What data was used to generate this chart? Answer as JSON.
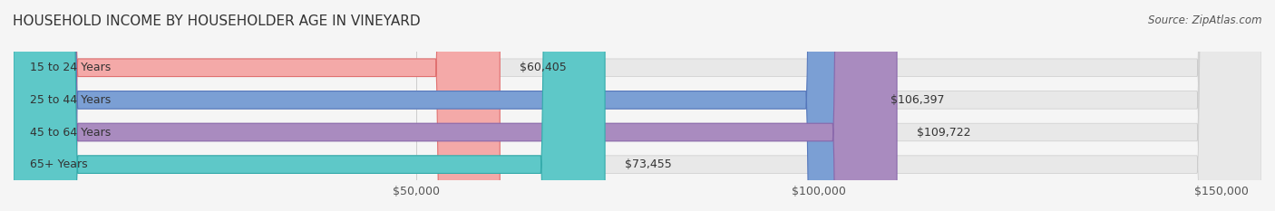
{
  "title": "HOUSEHOLD INCOME BY HOUSEHOLDER AGE IN VINEYARD",
  "source": "Source: ZipAtlas.com",
  "categories": [
    "15 to 24 Years",
    "25 to 44 Years",
    "45 to 64 Years",
    "65+ Years"
  ],
  "values": [
    60405,
    106397,
    109722,
    73455
  ],
  "bar_colors": [
    "#f4a9a8",
    "#7b9fd4",
    "#a98bbf",
    "#5ec8c8"
  ],
  "bar_edge_colors": [
    "#e07070",
    "#5577bb",
    "#8866aa",
    "#33aaaa"
  ],
  "background_color": "#f5f5f5",
  "bar_bg_color": "#e8e8e8",
  "xlim": [
    0,
    155000
  ],
  "xticks": [
    0,
    50000,
    100000,
    150000
  ],
  "xtick_labels": [
    "$50,000",
    "$100,000",
    "$150,000"
  ],
  "title_fontsize": 11,
  "label_fontsize": 9,
  "value_fontsize": 9,
  "source_fontsize": 8.5,
  "bar_height": 0.55,
  "fig_width": 14.06,
  "fig_height": 2.33
}
